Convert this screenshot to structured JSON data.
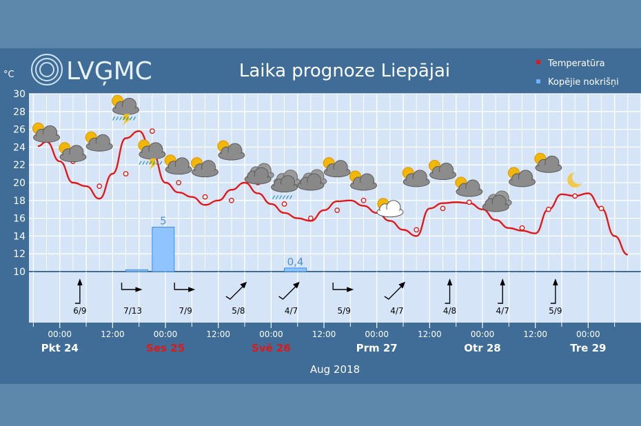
{
  "logo": {
    "text": "LVĢMC"
  },
  "header": {
    "title": "Laika prognoze Liepājai",
    "unit_label": "°C"
  },
  "legend": [
    {
      "label": "Temperatūra",
      "color": "#e01818"
    },
    {
      "label": "Kopējie nokrišņi",
      "color": "#6fb0ff"
    }
  ],
  "footer": {
    "month_label": "Aug 2018"
  },
  "chart_data": {
    "type": "line",
    "ylim": [
      10,
      30
    ],
    "yticks": [
      10,
      12,
      14,
      16,
      18,
      20,
      22,
      24,
      26,
      28,
      30
    ],
    "x_range_hours": [
      -7,
      132
    ],
    "grid": true,
    "legend_position": "top-right",
    "series": [
      {
        "name": "Temperatūra",
        "color": "#e01818",
        "x": [
          -5,
          -3,
          0,
          3,
          6,
          9,
          12,
          15,
          18,
          21,
          24,
          27,
          30,
          33,
          36,
          39,
          42,
          45,
          48,
          51,
          54,
          57,
          60,
          63,
          66,
          69,
          72,
          75,
          78,
          81,
          84,
          87,
          90,
          93,
          96,
          99,
          102,
          105,
          108,
          111,
          114,
          117,
          120,
          123,
          126,
          129
        ],
        "y": [
          24.1,
          24.6,
          22.4,
          20.0,
          19.6,
          18.2,
          21.0,
          25.0,
          25.8,
          23.4,
          20.0,
          18.9,
          18.4,
          17.5,
          18.0,
          19.2,
          20.0,
          18.8,
          17.6,
          16.6,
          16.0,
          15.7,
          16.9,
          17.9,
          18.0,
          17.4,
          16.6,
          15.7,
          14.7,
          14.0,
          17.1,
          17.7,
          17.8,
          17.7,
          17.0,
          15.8,
          14.9,
          14.6,
          14.3,
          17.0,
          18.7,
          18.5,
          18.8,
          17.1,
          14.0,
          11.9
        ],
        "markers_x": [
          3,
          9,
          15,
          21,
          27,
          33,
          39,
          45,
          51,
          57,
          63,
          69,
          75,
          81,
          87,
          93,
          99,
          105,
          111,
          117,
          123
        ],
        "markers_y": [
          22.4,
          19.6,
          21.0,
          25.8,
          20.0,
          18.4,
          18.0,
          20.0,
          17.6,
          16.0,
          16.9,
          18.0,
          16.6,
          14.7,
          17.1,
          17.8,
          17.0,
          14.9,
          17.0,
          18.5,
          17.1
        ]
      },
      {
        "name": "Kopējie nokrišņi",
        "color": "#6fb0ff",
        "type": "bar",
        "bars": [
          {
            "x_start": 15,
            "x_end": 20,
            "value": 0.2,
            "label": ""
          },
          {
            "x_start": 21,
            "x_end": 26,
            "value": 5,
            "label": "5"
          },
          {
            "x_start": 51,
            "x_end": 56,
            "value": 0.4,
            "label": "0,4"
          }
        ],
        "ylim": [
          0,
          20
        ]
      }
    ],
    "wind": [
      {
        "x": 3,
        "label": "6/9",
        "dir": "n"
      },
      {
        "x": 15,
        "label": "7/13",
        "dir": "e"
      },
      {
        "x": 27,
        "label": "7/9",
        "dir": "e"
      },
      {
        "x": 39,
        "label": "5/8",
        "dir": "ne"
      },
      {
        "x": 51,
        "label": "4/7",
        "dir": "ne"
      },
      {
        "x": 63,
        "label": "5/9",
        "dir": "e"
      },
      {
        "x": 75,
        "label": "4/7",
        "dir": "ne"
      },
      {
        "x": 87,
        "label": "4/8",
        "dir": "n"
      },
      {
        "x": 99,
        "label": "4/7",
        "dir": "n"
      },
      {
        "x": 111,
        "label": "5/9",
        "dir": "n"
      }
    ],
    "weather_icons": [
      {
        "x": -3,
        "temp_y": 25.4,
        "kind": "sun-cloud"
      },
      {
        "x": 3,
        "temp_y": 23.2,
        "kind": "sun-cloud"
      },
      {
        "x": 9,
        "temp_y": 24.4,
        "kind": "sun-cloud"
      },
      {
        "x": 15,
        "temp_y": 28.5,
        "kind": "storm"
      },
      {
        "x": 21,
        "temp_y": 23.5,
        "kind": "sun-storm"
      },
      {
        "x": 27,
        "temp_y": 21.8,
        "kind": "sun-cloud"
      },
      {
        "x": 33,
        "temp_y": 21.5,
        "kind": "sun-cloud"
      },
      {
        "x": 39,
        "temp_y": 23.4,
        "kind": "sun-cloud"
      },
      {
        "x": 45,
        "temp_y": 20.7,
        "kind": "cloudy"
      },
      {
        "x": 51,
        "temp_y": 19.8,
        "kind": "rain-cloud"
      },
      {
        "x": 57,
        "temp_y": 20.0,
        "kind": "cloudy"
      },
      {
        "x": 63,
        "temp_y": 21.5,
        "kind": "sun-cloud"
      },
      {
        "x": 69,
        "temp_y": 20.0,
        "kind": "sun-cloud"
      },
      {
        "x": 75,
        "temp_y": 17.0,
        "kind": "white-cloud"
      },
      {
        "x": 81,
        "temp_y": 20.4,
        "kind": "sun-cloud"
      },
      {
        "x": 87,
        "temp_y": 21.2,
        "kind": "sun-cloud"
      },
      {
        "x": 93,
        "temp_y": 19.3,
        "kind": "sun-cloud"
      },
      {
        "x": 99,
        "temp_y": 17.6,
        "kind": "cloudy"
      },
      {
        "x": 105,
        "temp_y": 20.4,
        "kind": "sun-cloud"
      },
      {
        "x": 111,
        "temp_y": 22.0,
        "kind": "sun-cloud"
      },
      {
        "x": 117,
        "temp_y": 20.3,
        "kind": "moon"
      }
    ],
    "time_ticks": [
      {
        "x": 0,
        "label": "00:00"
      },
      {
        "x": 12,
        "label": "12:00"
      },
      {
        "x": 24,
        "label": "00:00"
      },
      {
        "x": 36,
        "label": "12:00"
      },
      {
        "x": 48,
        "label": "00:00"
      },
      {
        "x": 60,
        "label": "12:00"
      },
      {
        "x": 72,
        "label": "00:00"
      },
      {
        "x": 84,
        "label": "12:00"
      },
      {
        "x": 96,
        "label": "00:00"
      },
      {
        "x": 108,
        "label": "12:00"
      },
      {
        "x": 120,
        "label": "00:00"
      }
    ],
    "days": [
      {
        "x": 0,
        "label": "Pkt 24",
        "color": "#ffffff"
      },
      {
        "x": 24,
        "label": "Ses 25",
        "color": "#e01818"
      },
      {
        "x": 48,
        "label": "Svē 26",
        "color": "#e01818"
      },
      {
        "x": 72,
        "label": "Prm 27",
        "color": "#ffffff"
      },
      {
        "x": 96,
        "label": "Otr 28",
        "color": "#ffffff"
      },
      {
        "x": 120,
        "label": "Tre 29",
        "color": "#ffffff"
      }
    ]
  }
}
